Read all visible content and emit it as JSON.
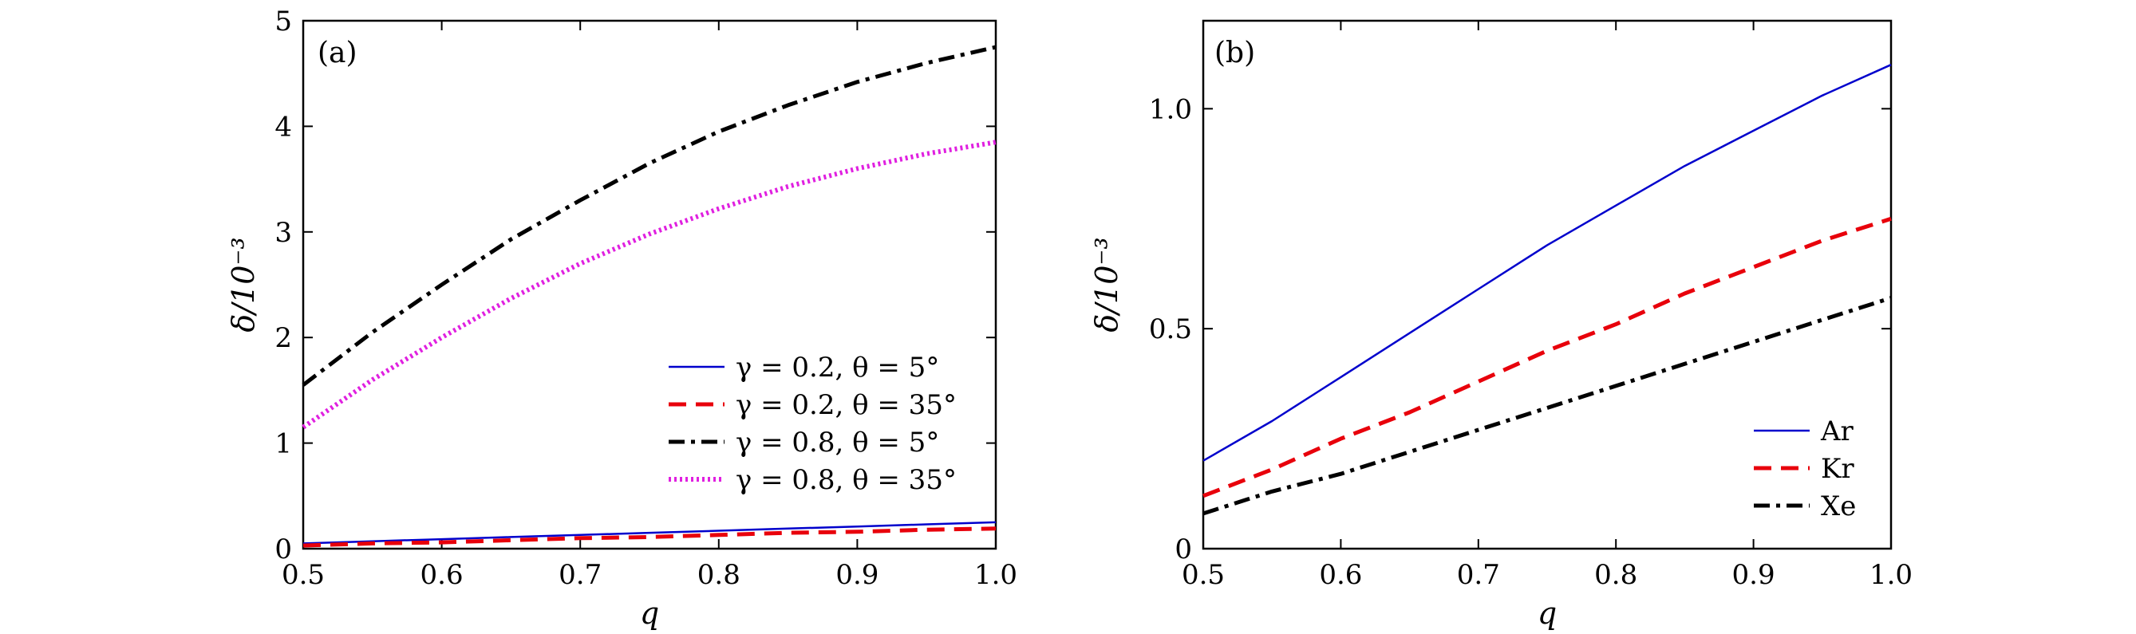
{
  "chart_data": [
    {
      "panel": "(a)",
      "type": "line",
      "xlabel": "q",
      "ylabel": "δ/10⁻³",
      "xlim": [
        0.5,
        1.0
      ],
      "ylim": [
        0,
        5
      ],
      "xticks": [
        "0.5",
        "0.6",
        "0.7",
        "0.8",
        "0.9",
        "1.0"
      ],
      "yticks": [
        "0",
        "1",
        "2",
        "3",
        "4",
        "5"
      ],
      "legend_position": "lower-right",
      "x": [
        0.5,
        0.55,
        0.6,
        0.65,
        0.7,
        0.75,
        0.8,
        0.85,
        0.9,
        0.95,
        1.0
      ],
      "series": [
        {
          "name": "γ = 0.2,  θ = 5°",
          "color": "#0000cc",
          "style": "solid",
          "values": [
            0.05,
            0.07,
            0.09,
            0.11,
            0.13,
            0.15,
            0.17,
            0.19,
            0.21,
            0.23,
            0.25
          ]
        },
        {
          "name": "γ = 0.2,  θ = 35°",
          "color": "#e8000b",
          "style": "dashed",
          "values": [
            0.03,
            0.05,
            0.06,
            0.08,
            0.1,
            0.11,
            0.13,
            0.15,
            0.16,
            0.18,
            0.19
          ]
        },
        {
          "name": "γ = 0.8,  θ = 5°",
          "color": "#000000",
          "style": "dashdot",
          "values": [
            1.55,
            2.05,
            2.5,
            2.93,
            3.3,
            3.65,
            3.95,
            4.2,
            4.42,
            4.6,
            4.75
          ]
        },
        {
          "name": "γ = 0.8,  θ = 35°",
          "color": "#e020e0",
          "style": "dotted",
          "values": [
            1.15,
            1.6,
            2.0,
            2.37,
            2.7,
            2.98,
            3.22,
            3.43,
            3.6,
            3.74,
            3.85
          ]
        }
      ]
    },
    {
      "panel": "(b)",
      "type": "line",
      "xlabel": "q",
      "ylabel": "δ/10⁻³",
      "xlim": [
        0.5,
        1.0
      ],
      "ylim": [
        0,
        1.2
      ],
      "xticks": [
        "0.5",
        "0.6",
        "0.7",
        "0.8",
        "0.9",
        "1.0"
      ],
      "yticks": [
        "0",
        "0.5",
        "1.0"
      ],
      "legend_position": "lower-right",
      "x": [
        0.5,
        0.55,
        0.6,
        0.65,
        0.7,
        0.75,
        0.8,
        0.85,
        0.9,
        0.95,
        1.0
      ],
      "series": [
        {
          "name": "Ar",
          "color": "#0000cc",
          "style": "solid",
          "values": [
            0.2,
            0.29,
            0.39,
            0.49,
            0.59,
            0.69,
            0.78,
            0.87,
            0.95,
            1.03,
            1.1
          ]
        },
        {
          "name": "Kr",
          "color": "#e8000b",
          "style": "dashed",
          "values": [
            0.12,
            0.18,
            0.25,
            0.31,
            0.38,
            0.45,
            0.51,
            0.58,
            0.64,
            0.7,
            0.75
          ]
        },
        {
          "name": "Xe",
          "color": "#000000",
          "style": "dashdot",
          "values": [
            0.08,
            0.13,
            0.17,
            0.22,
            0.27,
            0.32,
            0.37,
            0.42,
            0.47,
            0.52,
            0.57
          ]
        }
      ]
    }
  ]
}
